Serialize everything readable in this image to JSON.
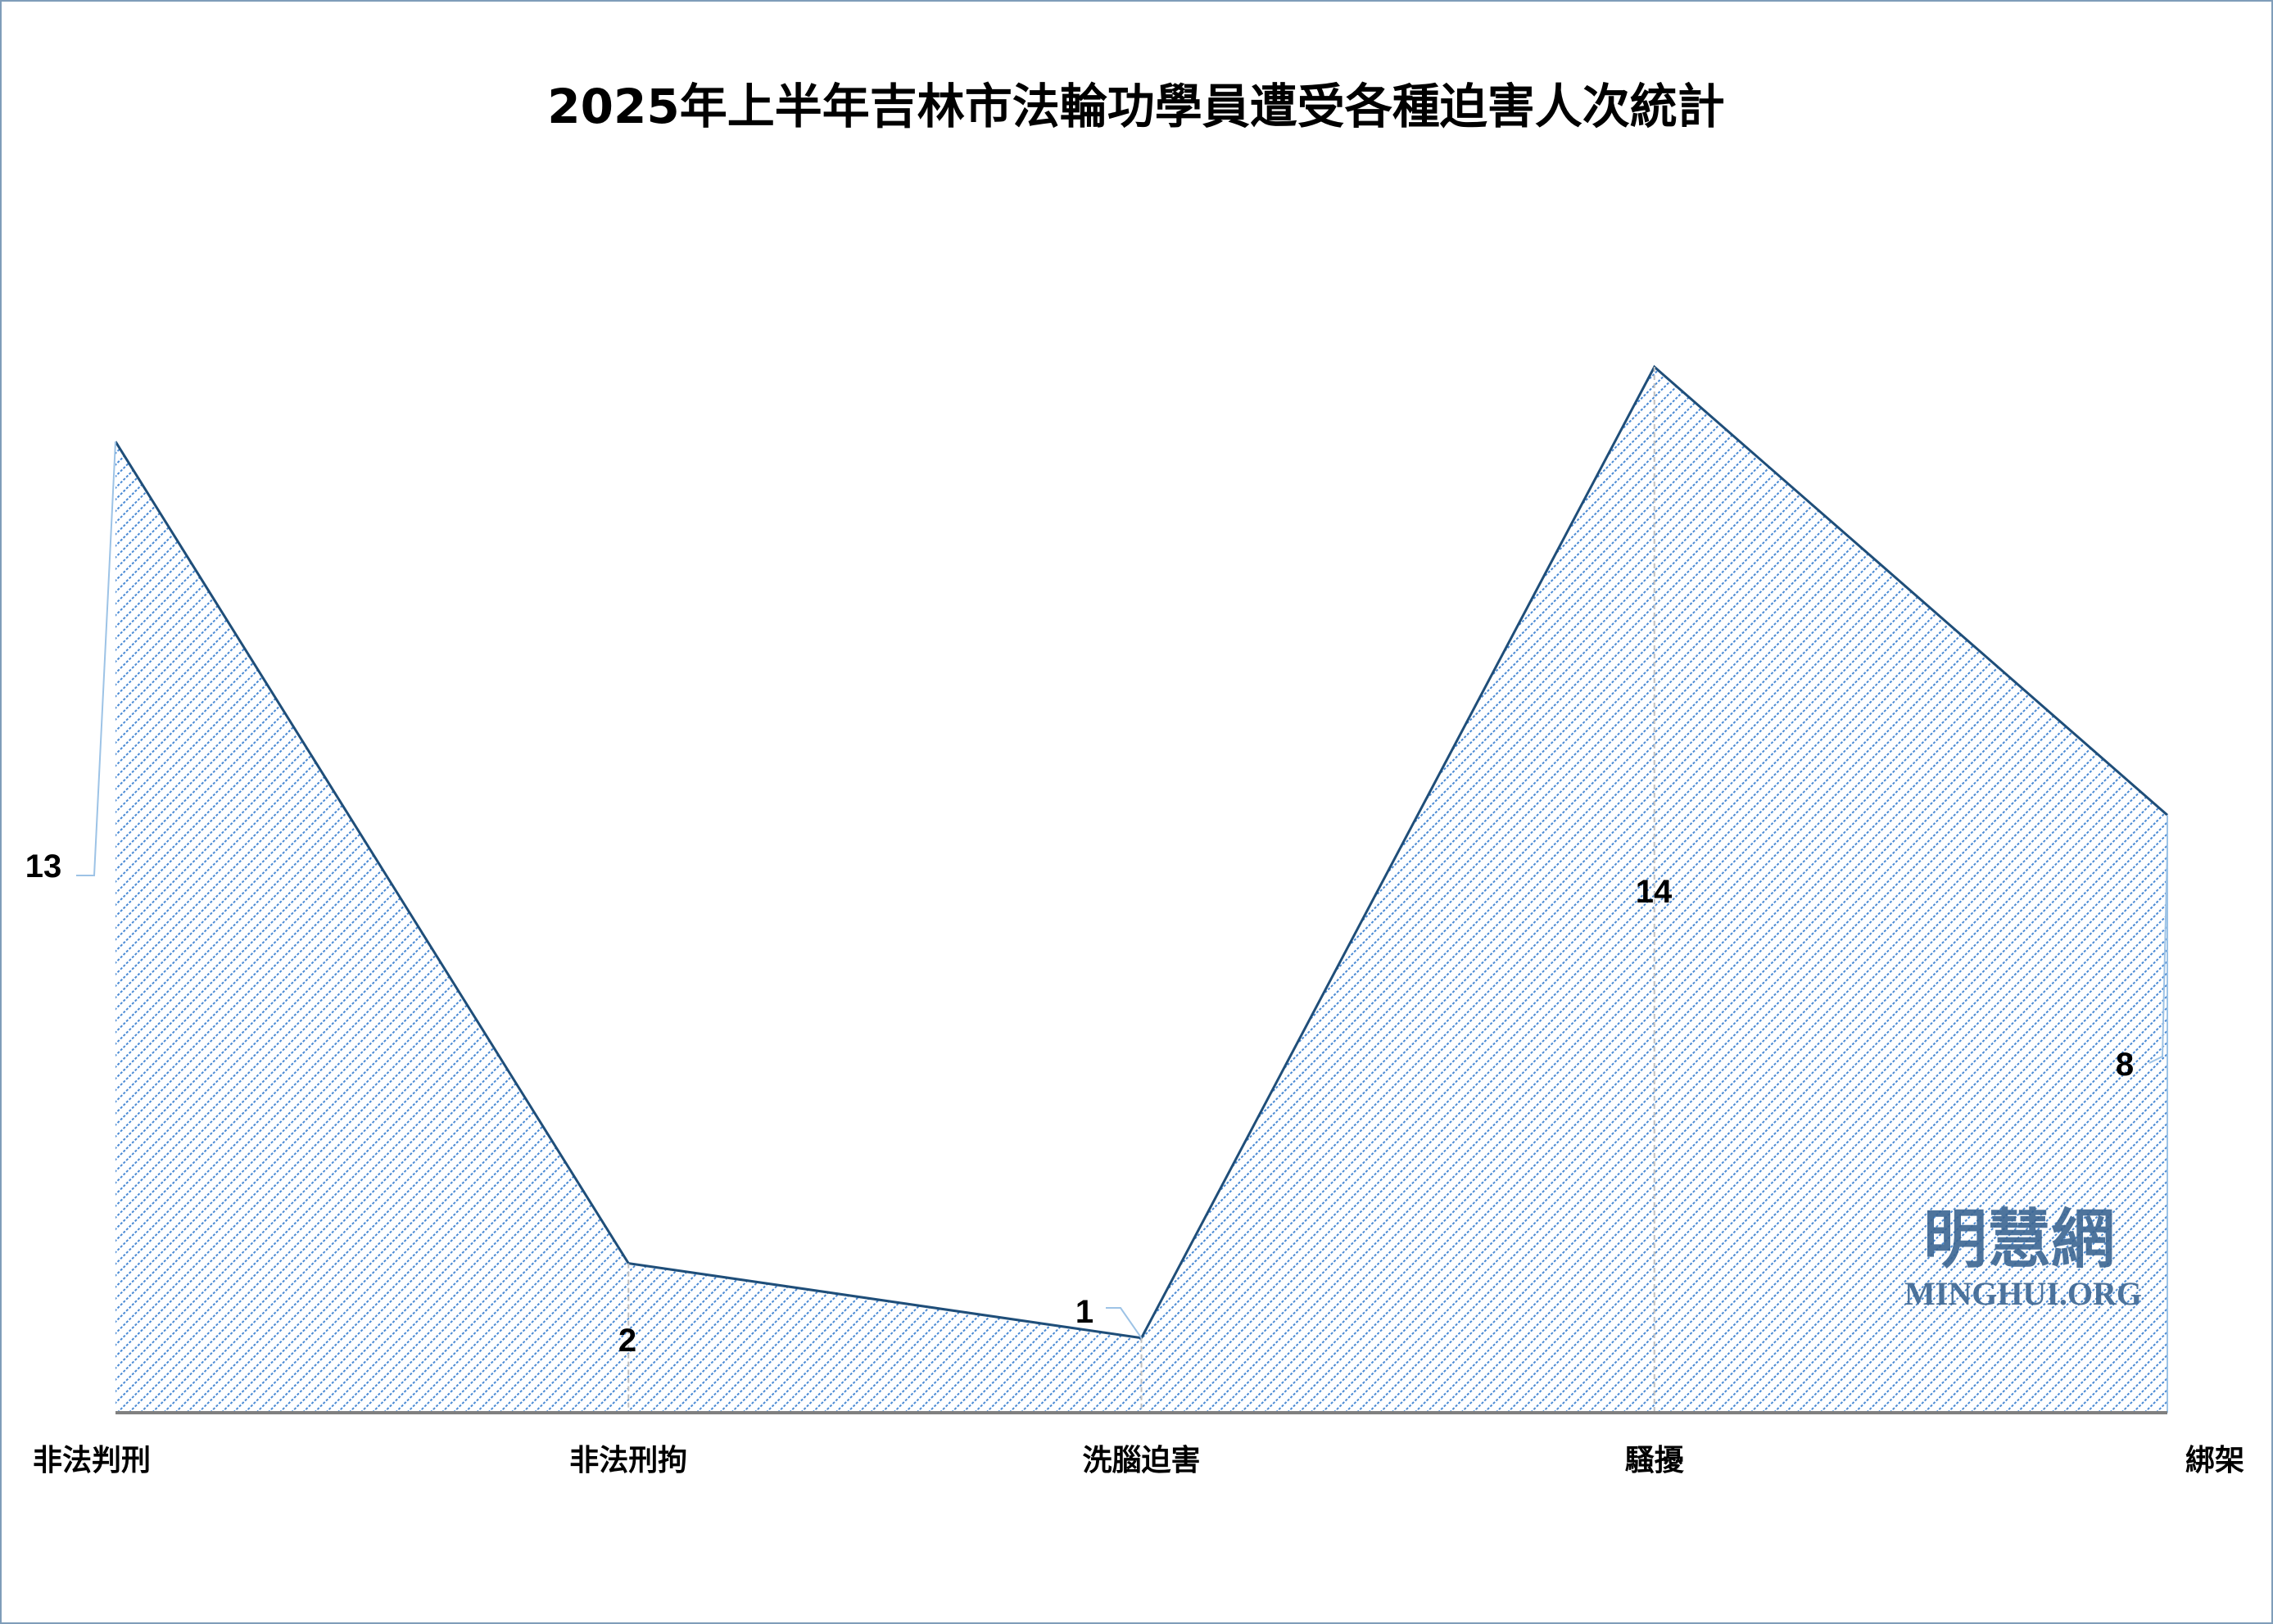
{
  "chart_data": {
    "type": "area",
    "title": "2025年上半年吉林市法輪功學員遭受各種迫害人次統計",
    "categories": [
      "非法判刑",
      "非法刑拘",
      "洗腦迫害",
      "騷擾",
      "綁架"
    ],
    "values": [
      13,
      2,
      1,
      14,
      8
    ],
    "ylim": [
      0,
      14
    ],
    "grid": false,
    "legend": "none",
    "data_labels": true,
    "colors": {
      "fill_pattern": "#4a8ad4",
      "line": "#1f4e79",
      "axis": "#808080",
      "leader": "#9dc3e6"
    }
  },
  "watermark": {
    "chinese": "明慧網",
    "english": "MINGHUI.ORG"
  }
}
